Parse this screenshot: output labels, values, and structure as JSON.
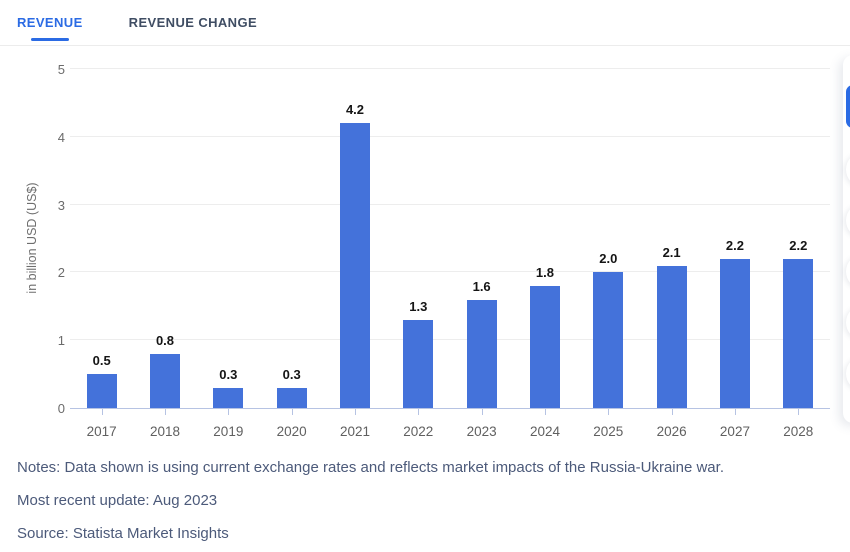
{
  "tabs": [
    {
      "label": "REVENUE",
      "active": true
    },
    {
      "label": "REVENUE CHANGE",
      "active": false
    }
  ],
  "chart_data": {
    "type": "bar",
    "categories": [
      "2017",
      "2018",
      "2019",
      "2020",
      "2021",
      "2022",
      "2023",
      "2024",
      "2025",
      "2026",
      "2027",
      "2028"
    ],
    "values": [
      0.5,
      0.8,
      0.3,
      0.3,
      4.2,
      1.3,
      1.6,
      1.8,
      2.0,
      2.1,
      2.2,
      2.2
    ],
    "value_labels": [
      "0.5",
      "0.8",
      "0.3",
      "0.3",
      "4.2",
      "1.3",
      "1.6",
      "1.8",
      "2.0",
      "2.1",
      "2.2",
      "2.2"
    ],
    "title": "",
    "xlabel": "",
    "ylabel": "in billion USD (US$)",
    "ylim": [
      0,
      5
    ],
    "yticks": [
      0,
      1,
      2,
      3,
      4,
      5
    ],
    "grid": true,
    "legend": "none",
    "bar_color": "#4472da"
  },
  "footer": {
    "notes": "Notes: Data shown is using current exchange rates and reflects market impacts of the Russia-Ukraine war.",
    "updated": "Most recent update: Aug 2023",
    "source": "Source: Statista Market Insights"
  },
  "colors": {
    "accent_blue": "#2b6be4",
    "bar_blue": "#4472da",
    "axis_line": "#b6c3e3",
    "gridline": "#ededed",
    "footer_text": "#4c5a7a"
  }
}
